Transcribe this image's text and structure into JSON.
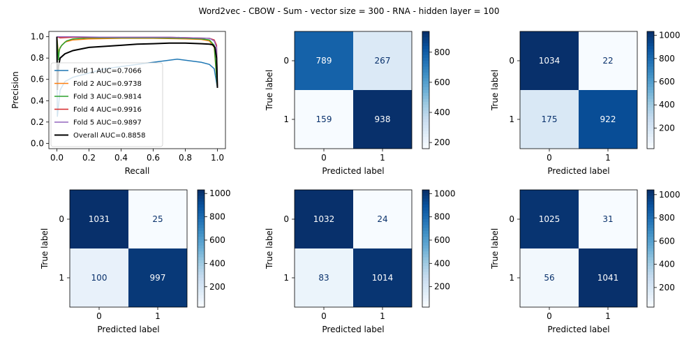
{
  "suptitle": "Word2vec - CBOW - Sum - vector size = 300 - RNA - hidden layer = 100",
  "chart_data": [
    {
      "type": "line",
      "name": "precision-recall",
      "xlabel": "Recall",
      "ylabel": "Precision",
      "xlim": [
        -0.05,
        1.05
      ],
      "ylim": [
        -0.05,
        1.05
      ],
      "xticks": [
        "0.0",
        "0.2",
        "0.4",
        "0.6",
        "0.8",
        "1.0"
      ],
      "yticks": [
        "0.0",
        "0.2",
        "0.4",
        "0.6",
        "0.8",
        "1.0"
      ],
      "grid": false,
      "legend_position": "lower-left",
      "series": [
        {
          "name": "Fold 1 AUC=0.7066",
          "color": "#1f77b4",
          "x": [
            0.0,
            0.003,
            0.02,
            0.05,
            0.1,
            0.2,
            0.3,
            0.4,
            0.5,
            0.6,
            0.7,
            0.75,
            0.8,
            0.85,
            0.9,
            0.95,
            0.98,
            1.0
          ],
          "y": [
            0.97,
            0.25,
            0.5,
            0.58,
            0.62,
            0.66,
            0.7,
            0.72,
            0.74,
            0.76,
            0.78,
            0.79,
            0.78,
            0.77,
            0.76,
            0.74,
            0.7,
            0.52
          ]
        },
        {
          "name": "Fold 2 AUC=0.9738",
          "color": "#ff7f0e",
          "x": [
            0.0,
            0.01,
            0.02,
            0.05,
            0.1,
            0.2,
            0.4,
            0.6,
            0.8,
            0.9,
            0.95,
            0.98,
            1.0
          ],
          "y": [
            1.0,
            0.83,
            0.9,
            0.95,
            0.97,
            0.98,
            0.985,
            0.985,
            0.98,
            0.975,
            0.96,
            0.9,
            0.52
          ]
        },
        {
          "name": "Fold 3 AUC=0.9814",
          "color": "#2ca02c",
          "x": [
            0.0,
            0.01,
            0.015,
            0.03,
            0.06,
            0.1,
            0.2,
            0.4,
            0.6,
            0.8,
            0.9,
            0.95,
            0.98,
            1.0
          ],
          "y": [
            1.0,
            0.78,
            0.88,
            0.92,
            0.96,
            0.98,
            0.99,
            0.99,
            0.99,
            0.985,
            0.98,
            0.97,
            0.92,
            0.52
          ]
        },
        {
          "name": "Fold 4 AUC=0.9916",
          "color": "#d62728",
          "x": [
            0.0,
            0.02,
            0.1,
            0.3,
            0.5,
            0.7,
            0.85,
            0.95,
            0.98,
            0.995,
            1.0
          ],
          "y": [
            1.0,
            0.99,
            0.995,
            0.995,
            0.995,
            0.995,
            0.99,
            0.985,
            0.97,
            0.92,
            0.52
          ]
        },
        {
          "name": "Fold 5 AUC=0.9897",
          "color": "#9467bd",
          "x": [
            0.0,
            0.02,
            0.1,
            0.3,
            0.5,
            0.7,
            0.85,
            0.95,
            0.98,
            0.995,
            1.0
          ],
          "y": [
            1.0,
            1.0,
            1.0,
            0.995,
            0.995,
            0.995,
            0.99,
            0.985,
            0.96,
            0.9,
            0.52
          ]
        },
        {
          "name": "Overall AUC=0.8858",
          "color": "#000000",
          "x": [
            0.0,
            0.003,
            0.01,
            0.02,
            0.05,
            0.1,
            0.2,
            0.3,
            0.4,
            0.5,
            0.6,
            0.7,
            0.8,
            0.9,
            0.95,
            0.97,
            0.985,
            0.995,
            1.0
          ],
          "y": [
            1.0,
            0.5,
            0.72,
            0.8,
            0.84,
            0.87,
            0.9,
            0.91,
            0.92,
            0.93,
            0.935,
            0.94,
            0.94,
            0.935,
            0.93,
            0.925,
            0.9,
            0.8,
            0.52
          ]
        }
      ]
    },
    {
      "type": "heatmap",
      "name": "confusion-fold-1",
      "xlabel": "Predicted label",
      "ylabel": "True label",
      "x_ticks": [
        "0",
        "1"
      ],
      "y_ticks": [
        "0",
        "1"
      ],
      "values": [
        [
          789,
          267
        ],
        [
          159,
          938
        ]
      ],
      "colorbar_ticks": [
        200,
        400,
        600,
        800
      ]
    },
    {
      "type": "heatmap",
      "name": "confusion-fold-2",
      "xlabel": "Predicted label",
      "ylabel": "True label",
      "x_ticks": [
        "0",
        "1"
      ],
      "y_ticks": [
        "0",
        "1"
      ],
      "values": [
        [
          1034,
          22
        ],
        [
          175,
          922
        ]
      ],
      "colorbar_ticks": [
        200,
        400,
        600,
        800,
        1000
      ]
    },
    {
      "type": "heatmap",
      "name": "confusion-fold-3",
      "xlabel": "Predicted label",
      "ylabel": "True label",
      "x_ticks": [
        "0",
        "1"
      ],
      "y_ticks": [
        "0",
        "1"
      ],
      "values": [
        [
          1031,
          25
        ],
        [
          100,
          997
        ]
      ],
      "colorbar_ticks": [
        200,
        400,
        600,
        800,
        1000
      ]
    },
    {
      "type": "heatmap",
      "name": "confusion-fold-4",
      "xlabel": "Predicted label",
      "ylabel": "True label",
      "x_ticks": [
        "0",
        "1"
      ],
      "y_ticks": [
        "0",
        "1"
      ],
      "values": [
        [
          1032,
          24
        ],
        [
          83,
          1014
        ]
      ],
      "colorbar_ticks": [
        200,
        400,
        600,
        800,
        1000
      ]
    },
    {
      "type": "heatmap",
      "name": "confusion-fold-5",
      "xlabel": "Predicted label",
      "ylabel": "True label",
      "x_ticks": [
        "0",
        "1"
      ],
      "y_ticks": [
        "0",
        "1"
      ],
      "values": [
        [
          1025,
          31
        ],
        [
          56,
          1041
        ]
      ],
      "colorbar_ticks": [
        200,
        400,
        600,
        800,
        1000
      ]
    }
  ]
}
